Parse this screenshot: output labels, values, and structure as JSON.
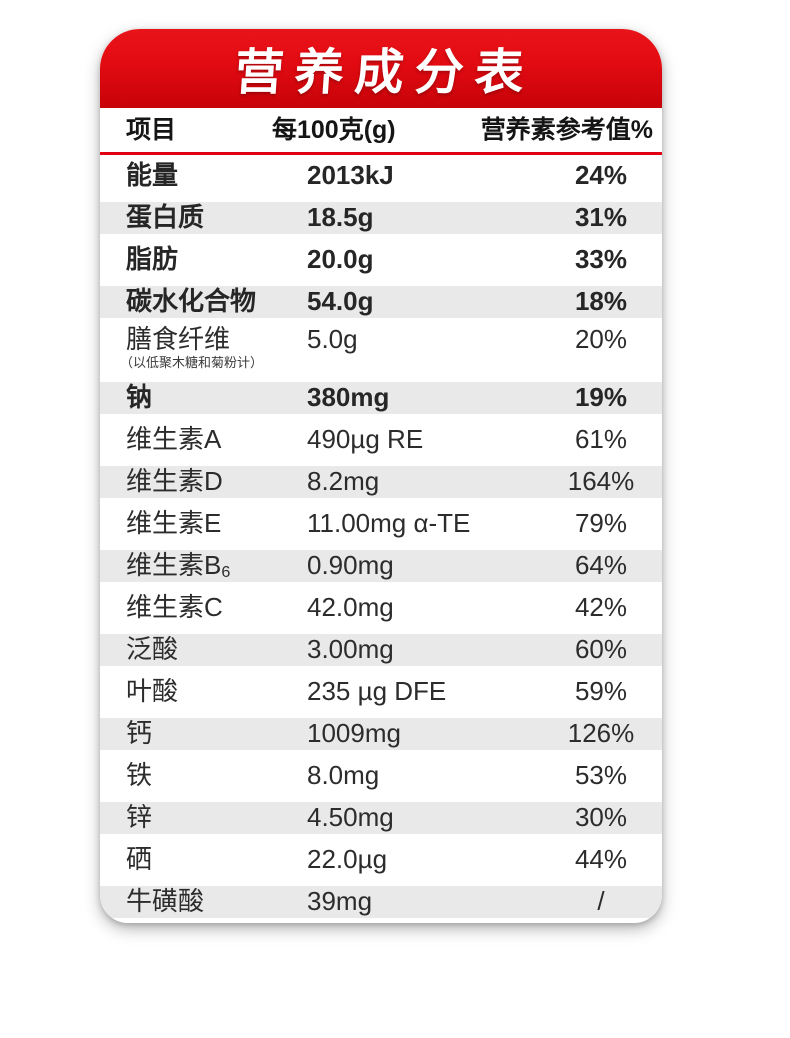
{
  "title": "营养成分表",
  "table": {
    "columns": [
      "项目",
      "每100克(g)",
      "营养素参考值%"
    ],
    "rows": [
      {
        "name": "能量",
        "sub": "",
        "note": "",
        "value": "2013kJ",
        "nrv": "24%",
        "bold": true,
        "shaded": false,
        "tall": false
      },
      {
        "name": "蛋白质",
        "sub": "",
        "note": "",
        "value": "18.5g",
        "nrv": "31%",
        "bold": true,
        "shaded": true,
        "tall": false
      },
      {
        "name": "脂肪",
        "sub": "",
        "note": "",
        "value": "20.0g",
        "nrv": "33%",
        "bold": true,
        "shaded": false,
        "tall": false
      },
      {
        "name": "碳水化合物",
        "sub": "",
        "note": "",
        "value": "54.0g",
        "nrv": "18%",
        "bold": true,
        "shaded": true,
        "tall": false
      },
      {
        "name": "膳食纤维",
        "sub": "",
        "note": "（以低聚木糖和菊粉计）",
        "value": "5.0g",
        "nrv": "20%",
        "bold": false,
        "shaded": false,
        "tall": true
      },
      {
        "name": "钠",
        "sub": "",
        "note": "",
        "value": "380mg",
        "nrv": "19%",
        "bold": true,
        "shaded": true,
        "tall": false
      },
      {
        "name": "维生素A",
        "sub": "",
        "note": "",
        "value": "490µg RE",
        "nrv": "61%",
        "bold": false,
        "shaded": false,
        "tall": false
      },
      {
        "name": "维生素D",
        "sub": "",
        "note": "",
        "value": "8.2mg",
        "nrv": "164%",
        "bold": false,
        "shaded": true,
        "tall": false
      },
      {
        "name": "维生素E",
        "sub": "",
        "note": "",
        "value": "11.00mg α-TE",
        "nrv": "79%",
        "bold": false,
        "shaded": false,
        "tall": false
      },
      {
        "name": "维生素B",
        "sub": "6",
        "note": "",
        "value": "0.90mg",
        "nrv": "64%",
        "bold": false,
        "shaded": true,
        "tall": false
      },
      {
        "name": "维生素C",
        "sub": "",
        "note": "",
        "value": "42.0mg",
        "nrv": "42%",
        "bold": false,
        "shaded": false,
        "tall": false
      },
      {
        "name": "泛酸",
        "sub": "",
        "note": "",
        "value": "3.00mg",
        "nrv": "60%",
        "bold": false,
        "shaded": true,
        "tall": false
      },
      {
        "name": "叶酸",
        "sub": "",
        "note": "",
        "value": "235 µg DFE",
        "nrv": "59%",
        "bold": false,
        "shaded": false,
        "tall": false
      },
      {
        "name": "钙",
        "sub": "",
        "note": "",
        "value": "1009mg",
        "nrv": "126%",
        "bold": false,
        "shaded": true,
        "tall": false
      },
      {
        "name": "铁",
        "sub": "",
        "note": "",
        "value": "8.0mg",
        "nrv": "53%",
        "bold": false,
        "shaded": false,
        "tall": false
      },
      {
        "name": "锌",
        "sub": "",
        "note": "",
        "value": "4.50mg",
        "nrv": "30%",
        "bold": false,
        "shaded": true,
        "tall": false
      },
      {
        "name": "硒",
        "sub": "",
        "note": "",
        "value": "22.0µg",
        "nrv": "44%",
        "bold": false,
        "shaded": false,
        "tall": false
      },
      {
        "name": "牛磺酸",
        "sub": "",
        "note": "",
        "value": "39mg",
        "nrv": "/",
        "bold": false,
        "shaded": true,
        "tall": false
      }
    ]
  },
  "colors": {
    "header_red_top": "#e81419",
    "header_red_bottom": "#c70309",
    "divider_red": "#e00011",
    "stripe_gray": "#e9e9e9",
    "text": "#2c2c2c"
  }
}
